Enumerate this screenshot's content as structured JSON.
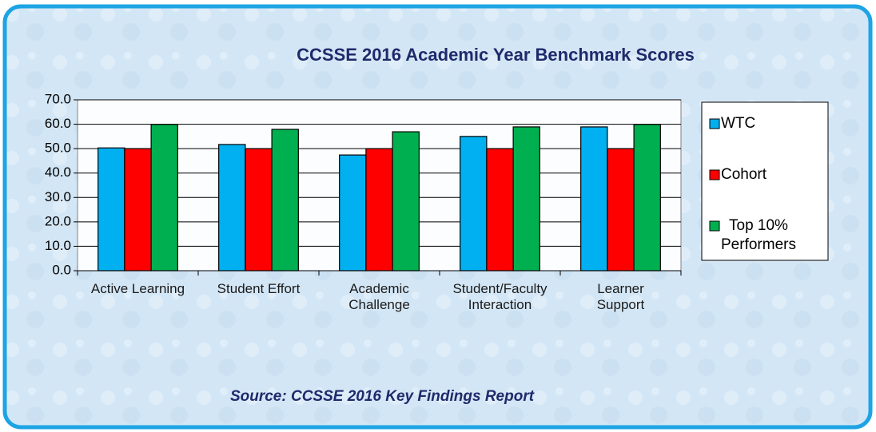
{
  "chart_data": {
    "type": "bar",
    "title": "CCSSE 2016 Academic Year Benchmark Scores",
    "source": "Source: CCSSE 2016 Key Findings Report",
    "categories": [
      "Active Learning",
      "Student Effort",
      "Academic\nChallenge",
      "Student/Faculty\nInteraction",
      "Learner\nSupport"
    ],
    "series": [
      {
        "name": "WTC",
        "color": "#00b0f0",
        "values": [
          50.3,
          51.7,
          47.4,
          55.0,
          58.9
        ]
      },
      {
        "name": "Cohort",
        "color": "#ff0000",
        "values": [
          50.0,
          50.0,
          50.0,
          50.0,
          50.0
        ]
      },
      {
        "name": "Top 10%\nPerformers",
        "color": "#00b050",
        "values": [
          59.9,
          57.9,
          56.9,
          58.9,
          59.9
        ]
      }
    ],
    "ylim": [
      0,
      70
    ],
    "yticks": [
      {
        "value": 0,
        "label": "0.0"
      },
      {
        "value": 10,
        "label": "10.0"
      },
      {
        "value": 20,
        "label": "20.0"
      },
      {
        "value": 30,
        "label": "30.0"
      },
      {
        "value": 40,
        "label": "40.0"
      },
      {
        "value": 50,
        "label": "50.0"
      },
      {
        "value": 60,
        "label": "60.0"
      },
      {
        "value": 70,
        "label": "70.0"
      }
    ],
    "grid": true,
    "legend": "right"
  }
}
